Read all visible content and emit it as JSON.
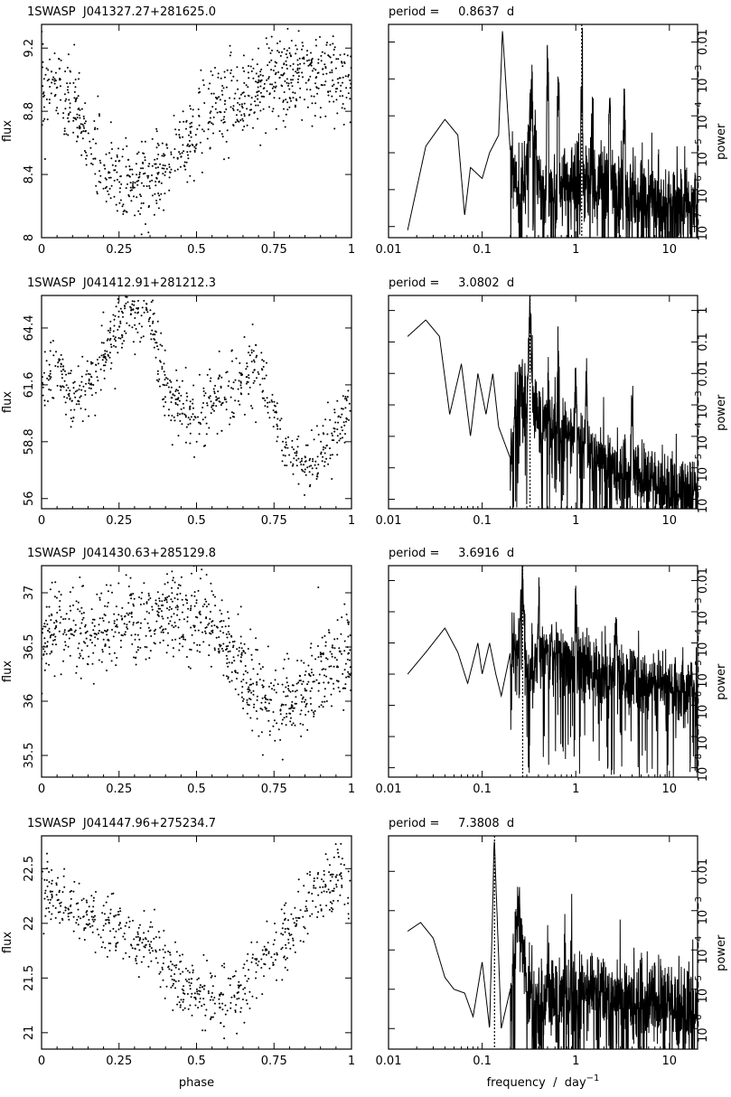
{
  "chart_data": [
    {
      "type": "scatter",
      "title": "1SWASP  J041327.27+281625.0",
      "xlabel": "",
      "ylabel": "flux",
      "xlim": [
        0,
        1
      ],
      "ylim": [
        8.0,
        9.35
      ],
      "xticks": [
        "0",
        "0.25",
        "0.5",
        "0.75",
        "1"
      ],
      "yticks": [
        {
          "v": 8,
          "label": "8"
        },
        {
          "v": 8.4,
          "label": "8.4"
        },
        {
          "v": 8.8,
          "label": "8.8"
        },
        {
          "v": 9.2,
          "label": "9.2"
        }
      ],
      "trend": [
        [
          0,
          8.95
        ],
        [
          0.05,
          8.95
        ],
        [
          0.1,
          8.85
        ],
        [
          0.15,
          8.6
        ],
        [
          0.2,
          8.42
        ],
        [
          0.25,
          8.35
        ],
        [
          0.3,
          8.32
        ],
        [
          0.35,
          8.35
        ],
        [
          0.4,
          8.42
        ],
        [
          0.45,
          8.55
        ],
        [
          0.5,
          8.7
        ],
        [
          0.55,
          8.82
        ],
        [
          0.6,
          8.88
        ],
        [
          0.65,
          8.9
        ],
        [
          0.7,
          8.95
        ],
        [
          0.75,
          9.0
        ],
        [
          0.8,
          9.02
        ],
        [
          0.85,
          9.05
        ],
        [
          0.9,
          9.05
        ],
        [
          0.95,
          9.02
        ],
        [
          1.0,
          9.0
        ]
      ],
      "scatter": 0.26,
      "n_points": 900
    },
    {
      "type": "line",
      "title": "period =     0.8637  d",
      "xlabel": "",
      "ylabel": "power",
      "x_scale": "log",
      "y_scale": "log",
      "xlim": [
        0.01,
        20
      ],
      "ylim": [
        5e-08,
        0.03
      ],
      "xticks": [
        {
          "v": 0.01,
          "label": "0.01"
        },
        {
          "v": 0.1,
          "label": "0.1"
        },
        {
          "v": 1,
          "label": "1"
        },
        {
          "v": 10,
          "label": "10"
        }
      ],
      "yticks": [
        {
          "v": 1e-07,
          "base": "10",
          "exp": "−7"
        },
        {
          "v": 1e-06,
          "base": "10",
          "exp": "−6"
        },
        {
          "v": 1e-05,
          "base": "10",
          "exp": "−5"
        },
        {
          "v": 0.0001,
          "base": "10",
          "exp": "−4"
        },
        {
          "v": 0.001,
          "base": "10",
          "exp": "−3"
        },
        {
          "v": 0.01,
          "base": "0.01",
          "exp": ""
        }
      ],
      "period_line_frequency": 1.158,
      "envelope": [
        [
          0.016,
          8e-08
        ],
        [
          0.025,
          1.5e-05
        ],
        [
          0.04,
          8e-05
        ],
        [
          0.055,
          3e-05
        ],
        [
          0.065,
          2e-07
        ],
        [
          0.075,
          4e-06
        ],
        [
          0.1,
          2e-06
        ],
        [
          0.12,
          1e-05
        ],
        [
          0.15,
          3e-05
        ],
        [
          0.165,
          0.02
        ],
        [
          0.2,
          1e-05
        ],
        [
          0.25,
          1e-06
        ],
        [
          0.3,
          4e-06
        ],
        [
          0.33,
          0.0005
        ],
        [
          0.4,
          3e-06
        ],
        [
          0.5,
          5e-07
        ],
        [
          1,
          3e-06
        ],
        [
          3,
          1e-06
        ],
        [
          10,
          5e-07
        ],
        [
          20,
          4e-07
        ]
      ],
      "peaks": [
        [
          0.165,
          0.02
        ],
        [
          0.33,
          0.0005
        ],
        [
          0.5,
          0.0015
        ],
        [
          0.65,
          0.0005
        ],
        [
          1.16,
          0.0008
        ],
        [
          1.5,
          0.0001
        ],
        [
          2.3,
          0.0003
        ],
        [
          3.3,
          0.0002
        ]
      ]
    },
    {
      "type": "scatter",
      "title": "1SWASP  J041412.91+281212.3",
      "xlabel": "",
      "ylabel": "flux",
      "xlim": [
        0,
        1
      ],
      "ylim": [
        55.5,
        66.0
      ],
      "xticks": [
        "0",
        "0.25",
        "0.5",
        "0.75",
        "1"
      ],
      "yticks": [
        {
          "v": 56,
          "label": "56"
        },
        {
          "v": 58.8,
          "label": "58.8"
        },
        {
          "v": 61.6,
          "label": "61.6"
        },
        {
          "v": 64.4,
          "label": "64.4"
        }
      ],
      "trend": [
        [
          0,
          62
        ],
        [
          0.05,
          62.5
        ],
        [
          0.1,
          61
        ],
        [
          0.15,
          61.5
        ],
        [
          0.2,
          63
        ],
        [
          0.25,
          64.5
        ],
        [
          0.3,
          65
        ],
        [
          0.35,
          65.2
        ],
        [
          0.4,
          61.5
        ],
        [
          0.45,
          60.5
        ],
        [
          0.5,
          60.0
        ],
        [
          0.55,
          60.5
        ],
        [
          0.6,
          61.0
        ],
        [
          0.65,
          62.0
        ],
        [
          0.7,
          62.5
        ],
        [
          0.75,
          60.0
        ],
        [
          0.8,
          58.5
        ],
        [
          0.85,
          57.5
        ],
        [
          0.9,
          58.0
        ],
        [
          0.95,
          59.5
        ],
        [
          1.0,
          60.5
        ]
      ],
      "scatter": 1.6,
      "n_points": 750
    },
    {
      "type": "line",
      "title": "period =     3.0802  d",
      "xlabel": "",
      "ylabel": "power",
      "x_scale": "log",
      "y_scale": "log",
      "xlim": [
        0.01,
        20
      ],
      "ylim": [
        5e-07,
        3
      ],
      "xticks": [
        {
          "v": 0.01,
          "label": "0.01"
        },
        {
          "v": 0.1,
          "label": "0.1"
        },
        {
          "v": 1,
          "label": "1"
        },
        {
          "v": 10,
          "label": "10"
        }
      ],
      "yticks": [
        {
          "v": 1e-06,
          "base": "10",
          "exp": "−6"
        },
        {
          "v": 1e-05,
          "base": "10",
          "exp": "−5"
        },
        {
          "v": 0.0001,
          "base": "10",
          "exp": "−4"
        },
        {
          "v": 0.001,
          "base": "10",
          "exp": "−3"
        },
        {
          "v": 0.01,
          "base": "0.01",
          "exp": ""
        },
        {
          "v": 0.1,
          "base": "0.1",
          "exp": ""
        },
        {
          "v": 1,
          "base": "1",
          "exp": ""
        }
      ],
      "period_line_frequency": 0.3247,
      "envelope": [
        [
          0.016,
          0.15
        ],
        [
          0.025,
          0.5
        ],
        [
          0.035,
          0.15
        ],
        [
          0.045,
          0.0005
        ],
        [
          0.06,
          0.02
        ],
        [
          0.075,
          0.0001
        ],
        [
          0.09,
          0.01
        ],
        [
          0.11,
          0.0005
        ],
        [
          0.13,
          0.01
        ],
        [
          0.15,
          0.0002
        ],
        [
          0.2,
          2e-05
        ],
        [
          0.25,
          0.01
        ],
        [
          0.3,
          0.001
        ],
        [
          0.325,
          1.5
        ],
        [
          0.35,
          0.001
        ],
        [
          0.4,
          0.0005
        ],
        [
          1,
          0.0001
        ],
        [
          3,
          1e-05
        ],
        [
          10,
          3e-06
        ],
        [
          20,
          2e-06
        ]
      ],
      "peaks": [
        [
          0.325,
          1.5
        ],
        [
          0.65,
          0.05
        ],
        [
          1.0,
          0.01
        ],
        [
          1.3,
          0.005
        ],
        [
          4.0,
          0.002
        ]
      ]
    },
    {
      "type": "scatter",
      "title": "1SWASP  J041430.63+285129.8",
      "xlabel": "",
      "ylabel": "flux",
      "xlim": [
        0,
        1
      ],
      "ylim": [
        35.3,
        37.25
      ],
      "xticks": [
        "0",
        "0.25",
        "0.5",
        "0.75",
        "1"
      ],
      "yticks": [
        {
          "v": 35.5,
          "label": "35.5"
        },
        {
          "v": 36,
          "label": "36"
        },
        {
          "v": 36.5,
          "label": "36.5"
        },
        {
          "v": 37,
          "label": "37"
        }
      ],
      "trend": [
        [
          0,
          36.5
        ],
        [
          0.05,
          36.6
        ],
        [
          0.1,
          36.65
        ],
        [
          0.15,
          36.6
        ],
        [
          0.2,
          36.7
        ],
        [
          0.3,
          36.75
        ],
        [
          0.4,
          36.8
        ],
        [
          0.5,
          36.75
        ],
        [
          0.55,
          36.7
        ],
        [
          0.6,
          36.5
        ],
        [
          0.65,
          36.3
        ],
        [
          0.7,
          36.1
        ],
        [
          0.75,
          35.95
        ],
        [
          0.8,
          36.0
        ],
        [
          0.85,
          36.15
        ],
        [
          0.9,
          36.25
        ],
        [
          0.95,
          36.4
        ],
        [
          1.0,
          36.5
        ]
      ],
      "scatter": 0.38,
      "n_points": 900
    },
    {
      "type": "line",
      "title": "period =     3.6916  d",
      "xlabel": "",
      "ylabel": "power",
      "x_scale": "log",
      "y_scale": "log",
      "xlim": [
        0.01,
        20
      ],
      "ylim": [
        5e-09,
        0.03
      ],
      "xticks": [
        {
          "v": 0.01,
          "label": "0.01"
        },
        {
          "v": 0.1,
          "label": "0.1"
        },
        {
          "v": 1,
          "label": "1"
        },
        {
          "v": 10,
          "label": "10"
        }
      ],
      "yticks": [
        {
          "v": 1e-08,
          "base": "10",
          "exp": "−8"
        },
        {
          "v": 1e-07,
          "base": "10",
          "exp": "−7"
        },
        {
          "v": 1e-06,
          "base": "10",
          "exp": "−6"
        },
        {
          "v": 1e-05,
          "base": "10",
          "exp": "−5"
        },
        {
          "v": 0.0001,
          "base": "10",
          "exp": "−4"
        },
        {
          "v": 0.001,
          "base": "10",
          "exp": "−3"
        },
        {
          "v": 0.01,
          "base": "0.01",
          "exp": ""
        }
      ],
      "period_line_frequency": 0.2709,
      "envelope": [
        [
          0.016,
          1e-05
        ],
        [
          0.025,
          5e-05
        ],
        [
          0.04,
          0.0003
        ],
        [
          0.055,
          5e-05
        ],
        [
          0.07,
          5e-06
        ],
        [
          0.09,
          0.0001
        ],
        [
          0.1,
          1e-05
        ],
        [
          0.12,
          0.0001
        ],
        [
          0.14,
          1e-05
        ],
        [
          0.16,
          2e-06
        ],
        [
          0.2,
          5e-05
        ],
        [
          0.24,
          0.0001
        ],
        [
          0.27,
          0.015
        ],
        [
          0.3,
          1e-05
        ],
        [
          0.4,
          5e-05
        ],
        [
          1,
          2e-05
        ],
        [
          3,
          1e-05
        ],
        [
          10,
          5e-06
        ],
        [
          20,
          4e-06
        ]
      ],
      "peaks": [
        [
          0.27,
          0.015
        ],
        [
          0.4,
          0.001
        ],
        [
          0.55,
          0.0003
        ],
        [
          1.0,
          0.002
        ],
        [
          2.7,
          0.001
        ]
      ]
    },
    {
      "type": "scatter",
      "title": "1SWASP  J041447.96+275234.7",
      "xlabel": "phase",
      "ylabel": "flux",
      "xlim": [
        0,
        1
      ],
      "ylim": [
        20.85,
        22.8
      ],
      "xticks": [
        "0",
        "0.25",
        "0.5",
        "0.75",
        "1"
      ],
      "yticks": [
        {
          "v": 21,
          "label": "21"
        },
        {
          "v": 21.5,
          "label": "21.5"
        },
        {
          "v": 22,
          "label": "22"
        },
        {
          "v": 22.5,
          "label": "22.5"
        }
      ],
      "trend": [
        [
          0,
          22.3
        ],
        [
          0.05,
          22.25
        ],
        [
          0.1,
          22.2
        ],
        [
          0.15,
          22.1
        ],
        [
          0.2,
          22.0
        ],
        [
          0.25,
          21.95
        ],
        [
          0.3,
          21.85
        ],
        [
          0.35,
          21.75
        ],
        [
          0.4,
          21.6
        ],
        [
          0.45,
          21.45
        ],
        [
          0.5,
          21.4
        ],
        [
          0.55,
          21.35
        ],
        [
          0.6,
          21.3
        ],
        [
          0.65,
          21.4
        ],
        [
          0.7,
          21.6
        ],
        [
          0.75,
          21.75
        ],
        [
          0.8,
          21.95
        ],
        [
          0.85,
          22.1
        ],
        [
          0.9,
          22.3
        ],
        [
          0.95,
          22.35
        ],
        [
          1.0,
          22.3
        ]
      ],
      "scatter": 0.3,
      "n_points": 650
    },
    {
      "type": "line",
      "title": "period =     7.3808  d",
      "xlabel": "frequency  /  day",
      "xlabel_exp": "−1",
      "ylabel": "power",
      "x_scale": "log",
      "y_scale": "log",
      "xlim": [
        0.01,
        20
      ],
      "ylim": [
        3e-07,
        0.08
      ],
      "xticks": [
        {
          "v": 0.01,
          "label": "0.01"
        },
        {
          "v": 0.1,
          "label": "0.1"
        },
        {
          "v": 1,
          "label": "1"
        },
        {
          "v": 10,
          "label": "10"
        }
      ],
      "yticks": [
        {
          "v": 1e-06,
          "base": "10",
          "exp": "−6"
        },
        {
          "v": 1e-05,
          "base": "10",
          "exp": "−5"
        },
        {
          "v": 0.0001,
          "base": "10",
          "exp": "−4"
        },
        {
          "v": 0.001,
          "base": "10",
          "exp": "−3"
        },
        {
          "v": 0.01,
          "base": "0.01",
          "exp": ""
        }
      ],
      "period_line_frequency": 0.1355,
      "envelope": [
        [
          0.016,
          0.0003
        ],
        [
          0.022,
          0.0005
        ],
        [
          0.03,
          0.0002
        ],
        [
          0.04,
          2e-05
        ],
        [
          0.05,
          1e-05
        ],
        [
          0.065,
          8e-06
        ],
        [
          0.08,
          2e-06
        ],
        [
          0.1,
          5e-05
        ],
        [
          0.12,
          1e-06
        ],
        [
          0.135,
          0.06
        ],
        [
          0.16,
          1e-06
        ],
        [
          0.2,
          1e-05
        ],
        [
          0.25,
          0.002
        ],
        [
          0.3,
          1e-05
        ],
        [
          0.4,
          5e-06
        ],
        [
          1,
          1e-05
        ],
        [
          3,
          8e-06
        ],
        [
          10,
          5e-06
        ],
        [
          20,
          4e-06
        ]
      ],
      "peaks": [
        [
          0.135,
          0.06
        ],
        [
          0.25,
          0.002
        ],
        [
          0.5,
          0.0001
        ],
        [
          0.9,
          0.0001
        ],
        [
          1.5,
          5e-05
        ]
      ]
    }
  ]
}
